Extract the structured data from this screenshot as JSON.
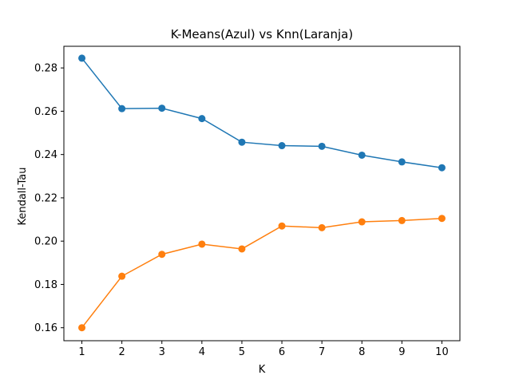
{
  "chart_data": {
    "type": "line",
    "title": "K-Means(Azul) vs Knn(Laranja)",
    "xlabel": "K",
    "ylabel": "Kendall-Tau",
    "x": [
      1,
      2,
      3,
      4,
      5,
      6,
      7,
      8,
      9,
      10
    ],
    "xticks": [
      "1",
      "2",
      "3",
      "4",
      "5",
      "6",
      "7",
      "8",
      "9",
      "10"
    ],
    "yticks": [
      "0.16",
      "0.18",
      "0.20",
      "0.22",
      "0.24",
      "0.26",
      "0.28"
    ],
    "ylim": [
      0.154,
      0.29
    ],
    "xlim": [
      0.55,
      10.45
    ],
    "grid": false,
    "legend": "none",
    "series": [
      {
        "color": "#1f77b4",
        "values": [
          0.2845,
          0.2612,
          0.2614,
          0.2566,
          0.2457,
          0.2441,
          0.2438,
          0.2397,
          0.2366,
          0.2339
        ]
      },
      {
        "color": "#ff7f0e",
        "values": [
          0.16,
          0.1838,
          0.1939,
          0.1986,
          0.1964,
          0.207,
          0.2062,
          0.2089,
          0.2095,
          0.2105
        ]
      }
    ]
  }
}
